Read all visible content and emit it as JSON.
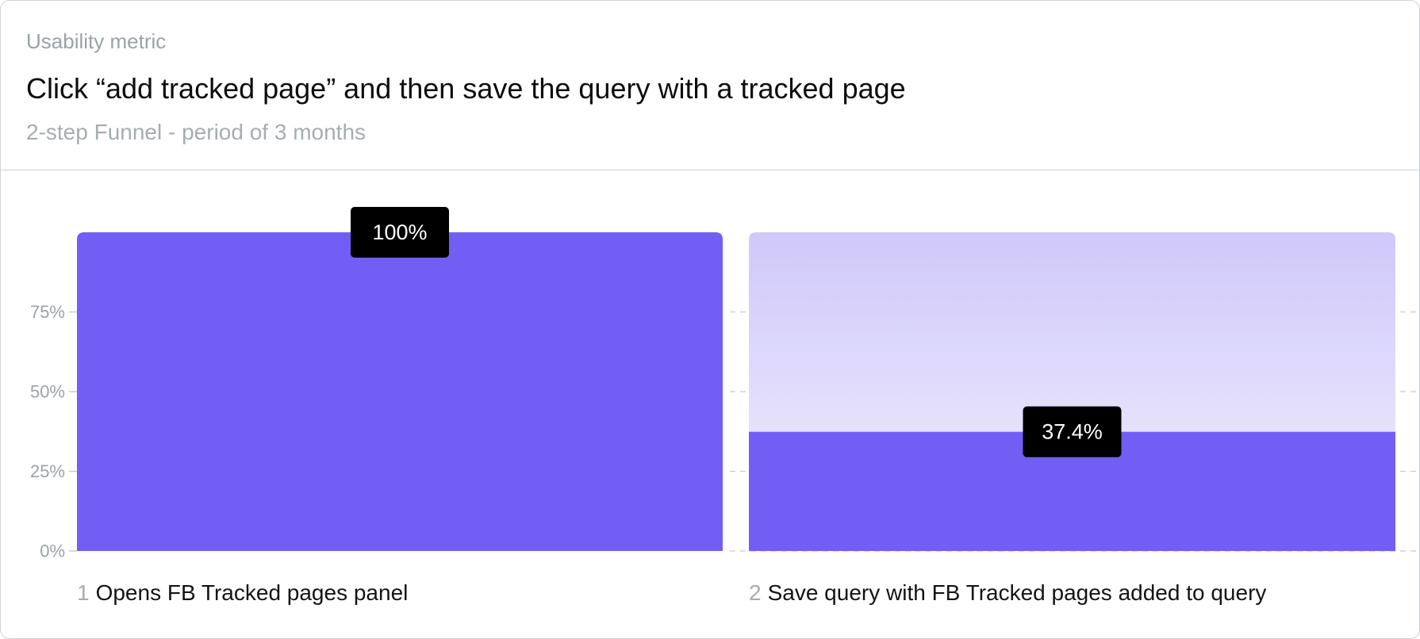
{
  "header": {
    "eyebrow": "Usability metric",
    "title": "Click “add tracked page” and then save the query with a tracked page",
    "subtitle": "2-step Funnel - period of 3 months"
  },
  "colors": {
    "bar": "#715ff5",
    "remainder_top": "#cfc8fa",
    "remainder_bottom": "#f3f1fe",
    "badge": "#000000",
    "grid": "#c7cbce",
    "tick": "#9aa3a7"
  },
  "chart_data": {
    "type": "bar",
    "categories": [
      {
        "index": "1",
        "label": "Opens FB Tracked pages panel"
      },
      {
        "index": "2",
        "label": "Save query with FB Tracked pages added to query"
      }
    ],
    "values": [
      100,
      37.4
    ],
    "value_labels": [
      "100%",
      "37.4%"
    ],
    "ylim": [
      0,
      100
    ],
    "yticks": [
      0,
      25,
      50,
      75
    ],
    "ytick_labels": [
      "0%",
      "25%",
      "50%",
      "75%"
    ],
    "grid": "dashed horizontal",
    "legend": "none"
  }
}
